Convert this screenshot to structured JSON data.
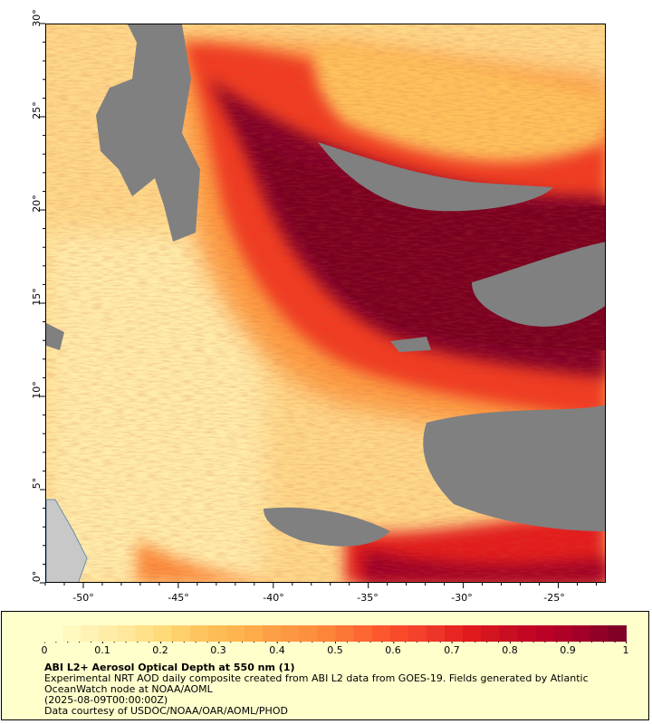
{
  "map": {
    "lat_ticks": [
      "0°",
      "5°",
      "10°",
      "15°",
      "20°",
      "25°",
      "30°"
    ],
    "lon_ticks": [
      "-50°",
      "-45°",
      "-40°",
      "-35°",
      "-30°",
      "-25°"
    ],
    "lat_range": [
      0,
      30
    ],
    "lon_range": [
      -52,
      -22.5
    ],
    "no_data_color": "#808080",
    "land_color": "#c8c8c8"
  },
  "legend": {
    "colorbar_ticks": [
      "0",
      "0.1",
      "0.2",
      "0.3",
      "0.4",
      "0.5",
      "0.6",
      "0.7",
      "0.8",
      "0.9",
      "1"
    ],
    "colorbar_range": [
      0,
      1
    ],
    "colors": [
      "#ffffcc",
      "#fff2b3",
      "#ffe699",
      "#fed976",
      "#fec25c",
      "#feb24c",
      "#fd9b43",
      "#fd8d3c",
      "#fc6e34",
      "#fc4e2a",
      "#ef3b2c",
      "#e31a1c",
      "#cb1020",
      "#bd0026",
      "#a30028",
      "#800026"
    ],
    "title": "ABI L2+ Aerosol Optical Depth at 550 nm (1)",
    "line1": "Experimental NRT AOD daily composite created from ABI L2 data from GOES-19. Fields generated by Atlantic OceanWatch node at NOAA/AOML",
    "line2": "(2025-08-09T00:00:00Z)",
    "line3": "Data courtesy of USDOC/NOAA/OAR/AOML/PHOD"
  }
}
